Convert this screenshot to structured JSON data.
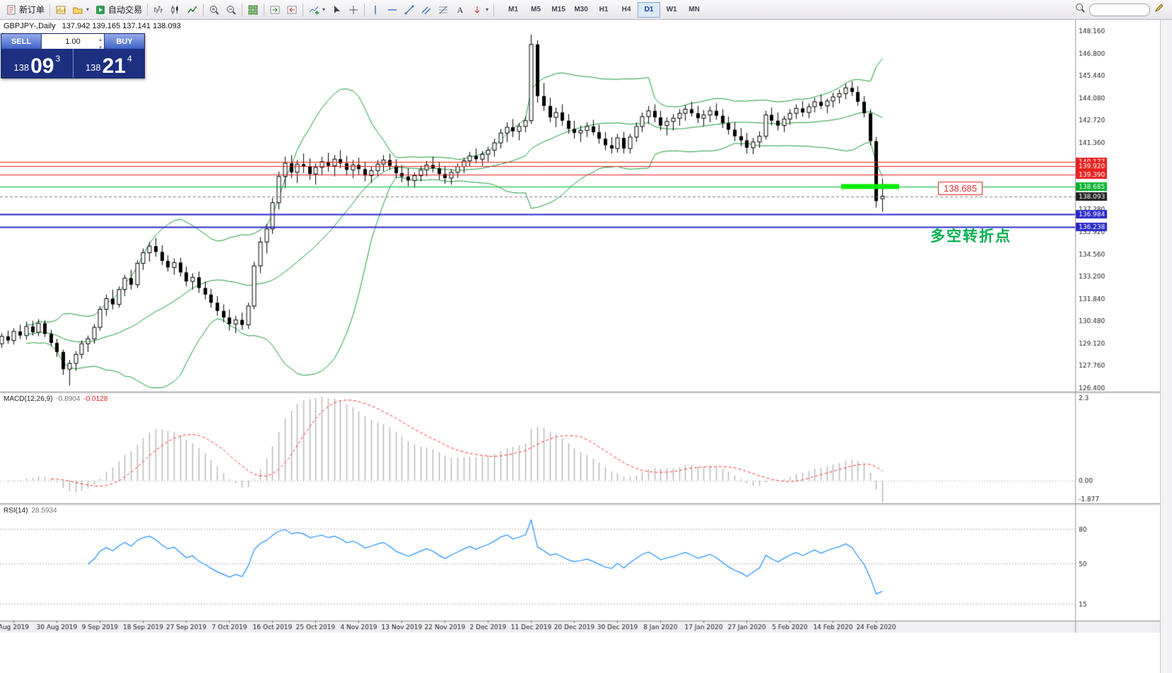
{
  "toolbar": {
    "items": [
      {
        "kind": "button",
        "name": "new-order-button",
        "icon": "new-order",
        "label": "新订单"
      },
      {
        "kind": "sep"
      },
      {
        "kind": "icon",
        "name": "new-chart-button",
        "icon": "new-chart"
      },
      {
        "kind": "icon",
        "name": "profiles-button",
        "icon": "profiles",
        "caret": true
      },
      {
        "kind": "button",
        "name": "autotrade-button",
        "icon": "autotrade",
        "label": "自动交易"
      },
      {
        "kind": "sep"
      },
      {
        "kind": "icon",
        "name": "bar-chart-button",
        "icon": "bars"
      },
      {
        "kind": "icon",
        "name": "candlestick-chart-button",
        "icon": "candles"
      },
      {
        "kind": "icon",
        "name": "line-chart-button",
        "icon": "linechart"
      },
      {
        "kind": "sep"
      },
      {
        "kind": "icon",
        "name": "zoom-in-button",
        "icon": "zoom-in"
      },
      {
        "kind": "icon",
        "name": "zoom-out-button",
        "icon": "zoom-out"
      },
      {
        "kind": "sep"
      },
      {
        "kind": "icon",
        "name": "tile-windows-button",
        "icon": "tile"
      },
      {
        "kind": "sep"
      },
      {
        "kind": "icon",
        "name": "auto-scroll-button",
        "icon": "autoscroll"
      },
      {
        "kind": "icon",
        "name": "chart-shift-button",
        "icon": "shift"
      },
      {
        "kind": "sep"
      },
      {
        "kind": "icon",
        "name": "indicators-button",
        "icon": "indicators",
        "caret": true
      },
      {
        "kind": "icon",
        "name": "cursor-button",
        "icon": "cursor"
      },
      {
        "kind": "icon",
        "name": "crosshair-button",
        "icon": "crosshair"
      },
      {
        "kind": "sep"
      },
      {
        "kind": "icon",
        "name": "vertical-line-button",
        "icon": "vline"
      },
      {
        "kind": "icon",
        "name": "horizontal-line-button",
        "icon": "hline"
      },
      {
        "kind": "icon",
        "name": "trendline-button",
        "icon": "trendline"
      },
      {
        "kind": "icon",
        "name": "channel-button",
        "icon": "channel"
      },
      {
        "kind": "icon",
        "name": "fibonacci-button",
        "icon": "fibo"
      },
      {
        "kind": "icon",
        "name": "text-button",
        "icon": "text"
      },
      {
        "kind": "icon",
        "name": "arrows-button",
        "icon": "arrows",
        "caret": true
      },
      {
        "kind": "sep"
      }
    ],
    "timeframes": [
      "M1",
      "M5",
      "M15",
      "M30",
      "H1",
      "H4",
      "D1",
      "W1",
      "MN"
    ],
    "active_timeframe": "D1",
    "right_icons": [
      "search",
      "pencil"
    ],
    "search_value": ""
  },
  "symbol_header": {
    "symbol": "GBPJPY-,Daily",
    "ohlc": "137.942 139.165 137.141 138.093"
  },
  "trade_panel": {
    "sell_label": "SELL",
    "buy_label": "BUY",
    "volume": "1.00",
    "sell_price_base": "138",
    "sell_price_big": "09",
    "sell_price_sup": "3",
    "buy_price_base": "138",
    "buy_price_big": "21",
    "buy_price_sup": "4"
  },
  "annotations": {
    "price_callout": "138.685",
    "turning_point": "多空转折点"
  },
  "macd_panel": {
    "label": "MACD(12,26,9)",
    "value_main": "-0.8904",
    "value_signal": "-0.0128",
    "axis_top": "2.3",
    "axis_zero": "0.00",
    "axis_bottom": "-1.877"
  },
  "rsi_panel": {
    "label": "RSI(14)",
    "value": "28.5934",
    "levels": [
      {
        "text": "80",
        "value": 80
      },
      {
        "text": "50",
        "value": 50
      },
      {
        "text": "15",
        "value": 15
      }
    ]
  },
  "chart_data": {
    "type": "candlestick",
    "symbol": "GBPJPY",
    "period": "Daily",
    "y_range": [
      126.18,
      148.85
    ],
    "price_axis_labels": [
      "148.160",
      "146.800",
      "145.440",
      "144.080",
      "142.720",
      "141.360",
      "140.000",
      "138.640",
      "137.280",
      "135.920",
      "134.560",
      "133.200",
      "131.840",
      "130.480",
      "129.120",
      "127.760",
      "126.400"
    ],
    "time_axis": [
      {
        "label": "Aug 2019",
        "index": 2
      },
      {
        "label": "30 Aug 2019",
        "index": 9
      },
      {
        "label": "9 Sep 2019",
        "index": 16
      },
      {
        "label": "18 Sep 2019",
        "index": 23
      },
      {
        "label": "27 Sep 2019",
        "index": 30
      },
      {
        "label": "7 Oct 2019",
        "index": 37
      },
      {
        "label": "16 Oct 2019",
        "index": 44
      },
      {
        "label": "25 Oct 2019",
        "index": 51
      },
      {
        "label": "4 Nov 2019",
        "index": 58
      },
      {
        "label": "13 Nov 2019",
        "index": 65
      },
      {
        "label": "22 Nov 2019",
        "index": 72
      },
      {
        "label": "2 Dec 2019",
        "index": 79
      },
      {
        "label": "11 Dec 2019",
        "index": 86
      },
      {
        "label": "20 Dec 2019",
        "index": 93
      },
      {
        "label": "30 Dec 2019",
        "index": 100
      },
      {
        "label": "8 Jan 2020",
        "index": 107
      },
      {
        "label": "17 Jan 2020",
        "index": 114
      },
      {
        "label": "27 Jan 2020",
        "index": 121
      },
      {
        "label": "5 Feb 2020",
        "index": 128
      },
      {
        "label": "14 Feb 2020",
        "index": 135
      },
      {
        "label": "24 Feb 2020",
        "index": 142
      }
    ],
    "hlines": [
      {
        "value": 140.177,
        "label": "140.177",
        "color": "#e82020",
        "width": 1
      },
      {
        "value": 139.92,
        "label": "139.920",
        "color": "#e82020",
        "width": 1
      },
      {
        "value": 139.39,
        "label": "139.390",
        "color": "#e82020",
        "width": 1
      },
      {
        "value": 138.685,
        "label": "138.685",
        "color": "#00b32c",
        "width": 1,
        "highlight_segment": true
      },
      {
        "value": 136.984,
        "label": "136.984",
        "color": "#2828c8",
        "width": 2
      },
      {
        "value": 136.238,
        "label": "136.238",
        "color": "#2828c8",
        "width": 2
      }
    ],
    "highlight_segment": {
      "value": 138.685,
      "x_from": 1190,
      "x_to": 1272,
      "color": "#00ee00"
    },
    "current_price": {
      "value": 138.093,
      "label": "138.093",
      "color": "#202020"
    },
    "bollinger": {
      "period": 20,
      "deviation": 2,
      "color": "#169b35"
    },
    "macd": {
      "fast": 12,
      "slow": 26,
      "signal": 9,
      "histogram_color": "#b8b8b8",
      "signal_color": "#ff2a2a"
    },
    "rsi": {
      "period": 14,
      "color": "#1e90ff"
    },
    "bull_color": "#ffffff",
    "bear_color": "#000000",
    "outline_color": "#000000",
    "candles": [
      [
        129.1,
        129.75,
        128.85,
        129.55
      ],
      [
        129.55,
        129.9,
        129.1,
        129.3
      ],
      [
        129.3,
        130.05,
        129.05,
        129.85
      ],
      [
        129.85,
        130.25,
        129.4,
        129.6
      ],
      [
        129.6,
        130.45,
        129.35,
        130.15
      ],
      [
        130.15,
        130.5,
        129.6,
        129.8
      ],
      [
        129.8,
        130.6,
        129.55,
        130.35
      ],
      [
        130.35,
        130.55,
        129.5,
        129.7
      ],
      [
        129.7,
        129.95,
        128.95,
        129.15
      ],
      [
        129.15,
        129.4,
        128.3,
        128.6
      ],
      [
        128.6,
        128.75,
        127.2,
        127.55
      ],
      [
        127.55,
        128.1,
        126.55,
        127.9
      ],
      [
        127.9,
        128.65,
        127.45,
        128.45
      ],
      [
        128.45,
        129.3,
        128.2,
        129.1
      ],
      [
        129.1,
        129.6,
        128.6,
        129.4
      ],
      [
        129.4,
        130.3,
        129.1,
        130.1
      ],
      [
        130.1,
        131.4,
        129.9,
        131.2
      ],
      [
        131.2,
        132.1,
        130.8,
        131.85
      ],
      [
        131.85,
        132.4,
        131.2,
        131.5
      ],
      [
        131.5,
        132.6,
        131.3,
        132.4
      ],
      [
        132.4,
        133.3,
        132.0,
        133.1
      ],
      [
        133.1,
        133.6,
        132.4,
        132.7
      ],
      [
        132.7,
        134.2,
        132.5,
        134.0
      ],
      [
        134.0,
        134.9,
        133.6,
        134.65
      ],
      [
        134.65,
        135.3,
        134.1,
        135.05
      ],
      [
        135.05,
        135.55,
        134.4,
        134.7
      ],
      [
        134.7,
        135.1,
        133.9,
        134.15
      ],
      [
        134.15,
        134.5,
        133.5,
        133.75
      ],
      [
        133.75,
        134.3,
        133.3,
        134.05
      ],
      [
        134.05,
        134.35,
        133.2,
        133.45
      ],
      [
        133.45,
        133.8,
        132.6,
        132.9
      ],
      [
        132.9,
        133.4,
        132.4,
        133.15
      ],
      [
        133.15,
        133.5,
        132.2,
        132.5
      ],
      [
        132.5,
        132.9,
        131.8,
        132.1
      ],
      [
        132.1,
        132.45,
        131.3,
        131.6
      ],
      [
        131.6,
        132.0,
        130.8,
        131.1
      ],
      [
        131.1,
        131.5,
        130.4,
        130.7
      ],
      [
        130.7,
        131.2,
        129.9,
        130.3
      ],
      [
        130.3,
        130.8,
        129.75,
        130.55
      ],
      [
        130.55,
        131.0,
        129.95,
        130.25
      ],
      [
        130.25,
        131.6,
        130.0,
        131.4
      ],
      [
        131.4,
        134.1,
        131.2,
        133.85
      ],
      [
        133.85,
        135.6,
        133.4,
        135.3
      ],
      [
        135.3,
        136.4,
        134.6,
        136.1
      ],
      [
        136.1,
        138.0,
        135.8,
        137.7
      ],
      [
        137.7,
        139.6,
        137.3,
        139.3
      ],
      [
        139.3,
        140.5,
        138.6,
        140.1
      ],
      [
        140.1,
        140.6,
        139.2,
        139.55
      ],
      [
        139.55,
        140.3,
        138.9,
        140.05
      ],
      [
        140.05,
        140.7,
        139.5,
        139.9
      ],
      [
        139.9,
        140.4,
        139.1,
        139.45
      ],
      [
        139.45,
        140.1,
        138.8,
        139.85
      ],
      [
        139.85,
        140.5,
        139.4,
        140.2
      ],
      [
        140.2,
        140.75,
        139.6,
        139.95
      ],
      [
        139.95,
        140.6,
        139.3,
        140.35
      ],
      [
        140.35,
        140.9,
        139.8,
        140.1
      ],
      [
        140.1,
        140.55,
        139.35,
        139.7
      ],
      [
        139.7,
        140.3,
        139.2,
        140.0
      ],
      [
        140.0,
        140.45,
        139.4,
        139.75
      ],
      [
        139.75,
        140.2,
        139.0,
        139.35
      ],
      [
        139.35,
        139.9,
        138.9,
        139.65
      ],
      [
        139.65,
        140.3,
        139.3,
        140.05
      ],
      [
        140.05,
        140.6,
        139.6,
        140.3
      ],
      [
        140.3,
        140.7,
        139.7,
        139.95
      ],
      [
        139.95,
        140.35,
        139.2,
        139.5
      ],
      [
        139.5,
        140.0,
        138.95,
        139.3
      ],
      [
        139.3,
        139.8,
        138.7,
        139.05
      ],
      [
        139.05,
        139.55,
        138.6,
        139.35
      ],
      [
        139.35,
        139.95,
        139.0,
        139.7
      ],
      [
        139.7,
        140.25,
        139.3,
        140.0
      ],
      [
        140.0,
        140.5,
        139.55,
        139.8
      ],
      [
        139.8,
        140.2,
        139.1,
        139.45
      ],
      [
        139.45,
        139.9,
        138.85,
        139.2
      ],
      [
        139.2,
        139.75,
        138.8,
        139.55
      ],
      [
        139.55,
        140.1,
        139.2,
        139.9
      ],
      [
        139.9,
        140.45,
        139.5,
        140.25
      ],
      [
        140.25,
        140.8,
        139.9,
        140.55
      ],
      [
        140.55,
        141.0,
        140.1,
        140.35
      ],
      [
        140.35,
        140.85,
        139.95,
        140.65
      ],
      [
        140.65,
        141.1,
        140.2,
        140.9
      ],
      [
        140.9,
        141.6,
        140.5,
        141.35
      ],
      [
        141.35,
        142.2,
        141.0,
        141.95
      ],
      [
        141.95,
        142.6,
        141.4,
        142.3
      ],
      [
        142.3,
        142.8,
        141.7,
        142.05
      ],
      [
        142.05,
        142.55,
        141.5,
        142.35
      ],
      [
        142.35,
        142.95,
        142.0,
        142.7
      ],
      [
        142.7,
        147.95,
        142.5,
        147.35
      ],
      [
        147.35,
        147.6,
        143.8,
        144.2
      ],
      [
        144.2,
        145.0,
        143.3,
        143.6
      ],
      [
        143.6,
        144.1,
        142.6,
        142.9
      ],
      [
        142.9,
        143.5,
        142.3,
        143.2
      ],
      [
        143.2,
        143.7,
        142.4,
        142.7
      ],
      [
        142.7,
        143.1,
        141.9,
        142.2
      ],
      [
        142.2,
        142.7,
        141.6,
        141.95
      ],
      [
        141.95,
        142.4,
        141.4,
        142.1
      ],
      [
        142.1,
        142.6,
        141.7,
        142.35
      ],
      [
        142.35,
        142.75,
        141.8,
        142.0
      ],
      [
        142.0,
        142.45,
        141.3,
        141.6
      ],
      [
        141.6,
        142.0,
        140.9,
        141.2
      ],
      [
        141.2,
        141.7,
        140.7,
        141.0
      ],
      [
        141.0,
        141.9,
        140.75,
        141.65
      ],
      [
        141.65,
        142.0,
        140.7,
        141.0
      ],
      [
        141.0,
        141.9,
        140.7,
        141.7
      ],
      [
        141.7,
        142.6,
        141.4,
        142.35
      ],
      [
        142.35,
        143.2,
        142.0,
        142.95
      ],
      [
        142.95,
        143.6,
        142.5,
        143.3
      ],
      [
        143.3,
        143.7,
        142.6,
        142.9
      ],
      [
        142.9,
        143.3,
        142.1,
        142.4
      ],
      [
        142.4,
        142.9,
        141.8,
        142.65
      ],
      [
        142.65,
        143.1,
        142.1,
        142.85
      ],
      [
        142.85,
        143.4,
        142.4,
        143.15
      ],
      [
        143.15,
        143.65,
        142.7,
        143.4
      ],
      [
        143.4,
        143.85,
        142.95,
        143.15
      ],
      [
        143.15,
        143.6,
        142.55,
        142.85
      ],
      [
        142.85,
        143.35,
        142.35,
        143.05
      ],
      [
        143.05,
        143.55,
        142.6,
        143.3
      ],
      [
        143.3,
        143.75,
        142.75,
        143.0
      ],
      [
        143.0,
        143.4,
        142.25,
        142.55
      ],
      [
        142.55,
        142.95,
        141.85,
        142.15
      ],
      [
        142.15,
        142.6,
        141.45,
        141.75
      ],
      [
        141.75,
        142.25,
        141.15,
        141.5
      ],
      [
        141.5,
        141.95,
        140.7,
        141.05
      ],
      [
        141.05,
        141.65,
        140.65,
        141.4
      ],
      [
        141.4,
        142.05,
        141.05,
        141.75
      ],
      [
        141.75,
        143.3,
        141.55,
        143.05
      ],
      [
        143.05,
        143.5,
        142.4,
        142.7
      ],
      [
        142.7,
        143.2,
        142.1,
        142.4
      ],
      [
        142.4,
        143.0,
        142.0,
        142.8
      ],
      [
        142.8,
        143.4,
        142.45,
        143.15
      ],
      [
        143.15,
        143.7,
        142.8,
        143.45
      ],
      [
        143.45,
        143.9,
        142.95,
        143.2
      ],
      [
        143.2,
        143.75,
        142.85,
        143.55
      ],
      [
        143.55,
        144.1,
        143.2,
        143.85
      ],
      [
        143.85,
        144.3,
        143.4,
        143.6
      ],
      [
        143.6,
        144.05,
        143.15,
        143.9
      ],
      [
        143.9,
        144.4,
        143.5,
        144.15
      ],
      [
        144.15,
        144.6,
        143.75,
        144.35
      ],
      [
        144.35,
        144.95,
        144.0,
        144.7
      ],
      [
        144.7,
        145.1,
        144.2,
        144.45
      ],
      [
        144.45,
        144.8,
        143.6,
        143.85
      ],
      [
        143.85,
        144.2,
        142.9,
        143.15
      ],
      [
        143.15,
        143.4,
        141.2,
        141.45
      ],
      [
        141.45,
        141.7,
        137.4,
        137.8
      ],
      [
        137.94,
        139.17,
        137.14,
        138.09
      ]
    ]
  }
}
